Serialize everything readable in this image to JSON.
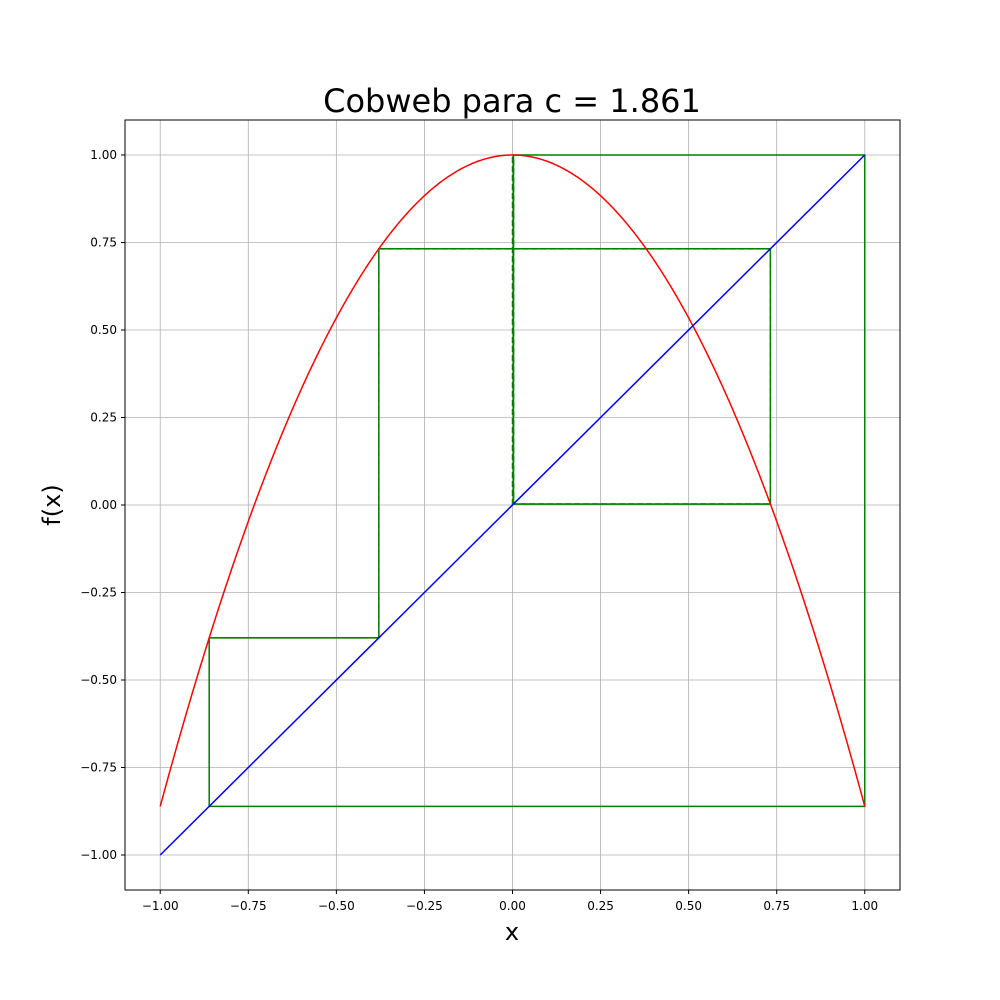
{
  "chart_data": {
    "type": "line",
    "title": "Cobweb para c = 1.861",
    "xlabel": "x",
    "ylabel": "f(x)",
    "xlim": [
      -1.1,
      1.1
    ],
    "ylim": [
      -1.1,
      1.1
    ],
    "grid": true,
    "x_ticks": [
      -1.0,
      -0.75,
      -0.5,
      -0.25,
      0.0,
      0.25,
      0.5,
      0.75,
      1.0
    ],
    "y_ticks": [
      -1.0,
      -0.75,
      -0.5,
      -0.25,
      0.0,
      0.25,
      0.5,
      0.75,
      1.0
    ],
    "x_tick_labels": [
      "−1.00",
      "−0.75",
      "−0.50",
      "−0.25",
      "0.00",
      "0.25",
      "0.50",
      "0.75",
      "1.00"
    ],
    "y_tick_labels": [
      "−1.00",
      "−0.75",
      "−0.50",
      "−0.25",
      "0.00",
      "0.25",
      "0.50",
      "0.75",
      "1.00"
    ],
    "function": {
      "formula": "1 - c*x^2",
      "c": 1.861,
      "domain": [
        -1.0,
        1.0
      ],
      "color": "#ff0000"
    },
    "identity": {
      "domain": [
        -1.0,
        1.0
      ],
      "color": "#0000ff"
    },
    "cobweb": {
      "x0": 0.0,
      "c": 1.861,
      "iterations": 24,
      "color": "#008000"
    }
  }
}
